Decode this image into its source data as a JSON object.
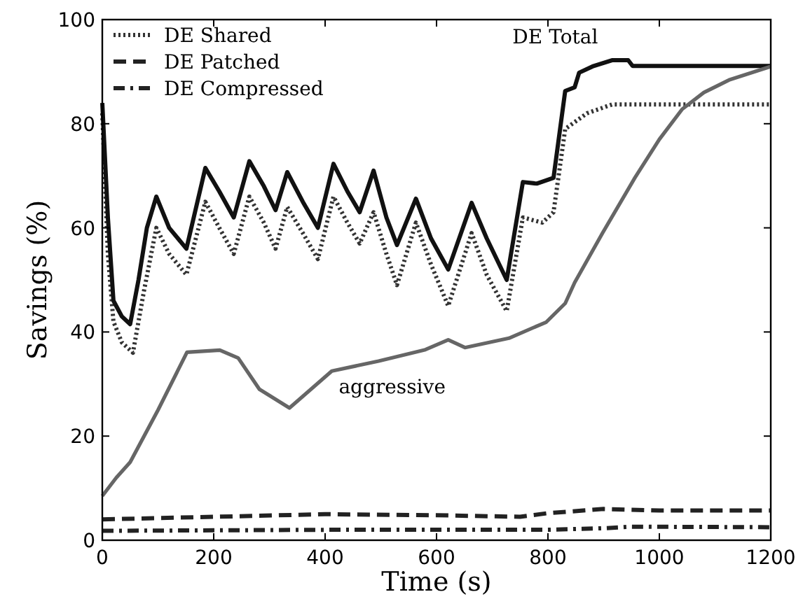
{
  "chart_data": {
    "type": "line",
    "xlabel": "Time (s)",
    "ylabel": "Savings (%)",
    "xlim": [
      0,
      1200
    ],
    "ylim": [
      0,
      100
    ],
    "xticks": [
      0,
      200,
      400,
      600,
      800,
      1000,
      1200
    ],
    "yticks": [
      0,
      20,
      40,
      60,
      80,
      100
    ],
    "grid": false,
    "legend": "top left",
    "series": [
      {
        "name": "DE Shared",
        "color": "#333333",
        "line_style": "dotted",
        "x": [
          0,
          10,
          20,
          35,
          55,
          75,
          97,
          120,
          151,
          185,
          210,
          236,
          264,
          290,
          311,
          332,
          360,
          387,
          415,
          440,
          462,
          487,
          510,
          529,
          563,
          590,
          621,
          663,
          690,
          726,
          755,
          790,
          810,
          831,
          870,
          915,
          1200
        ],
        "values": [
          82,
          55,
          42,
          38,
          36,
          48,
          60,
          55,
          51,
          65,
          60,
          55,
          66,
          61,
          56,
          64,
          59,
          54,
          66,
          61,
          57,
          63,
          55,
          49,
          61,
          53,
          45,
          59,
          51,
          44,
          62,
          61,
          63,
          79,
          82,
          83.7,
          83.7
        ]
      },
      {
        "name": "DE Patched",
        "color": "#222222",
        "line_style": "dashed",
        "x": [
          0,
          200,
          400,
          600,
          750,
          800,
          900,
          1000,
          1200
        ],
        "values": [
          4,
          4.5,
          5,
          4.8,
          4.5,
          5.2,
          6,
          5.7,
          5.7
        ]
      },
      {
        "name": "DE Compressed",
        "color": "#222222",
        "line_style": "dashdot",
        "x": [
          0,
          400,
          800,
          900,
          950,
          1200
        ],
        "values": [
          1.8,
          2,
          2,
          2.3,
          2.6,
          2.5
        ]
      },
      {
        "name": "DE Total",
        "color": "#111111",
        "line_style": "solid",
        "x": [
          0,
          10,
          20,
          35,
          50,
          65,
          80,
          97,
          120,
          151,
          185,
          210,
          236,
          264,
          290,
          311,
          332,
          360,
          387,
          415,
          440,
          462,
          487,
          510,
          529,
          563,
          590,
          621,
          663,
          690,
          726,
          755,
          780,
          810,
          831,
          848,
          856,
          880,
          915,
          944,
          952,
          1200
        ],
        "values": [
          84,
          62,
          46,
          43,
          41.5,
          50,
          60,
          66,
          60,
          56,
          71.5,
          67,
          62,
          72.8,
          68,
          63.4,
          70.7,
          65,
          60,
          72.3,
          67,
          63,
          71,
          62,
          56.7,
          65.6,
          58,
          52,
          64.8,
          58,
          50,
          68.8,
          68.5,
          69.6,
          86.3,
          87,
          89.8,
          91,
          92.2,
          92.2,
          91.1,
          91.1
        ]
      },
      {
        "name": "aggressive",
        "color": "#666666",
        "line_style": "solid",
        "x": [
          0,
          25,
          50,
          100,
          152,
          211,
          244,
          282,
          336,
          412,
          496,
          580,
          621,
          651,
          730,
          797,
          831,
          848,
          898,
          956,
          1000,
          1041,
          1080,
          1125,
          1200
        ],
        "values": [
          8.5,
          12,
          15,
          25,
          36.1,
          36.5,
          35,
          29,
          25.4,
          32.5,
          34.4,
          36.6,
          38.5,
          37,
          38.8,
          41.9,
          45.5,
          49.5,
          59,
          69.6,
          77,
          82.8,
          86,
          88.4,
          91
        ]
      }
    ]
  }
}
